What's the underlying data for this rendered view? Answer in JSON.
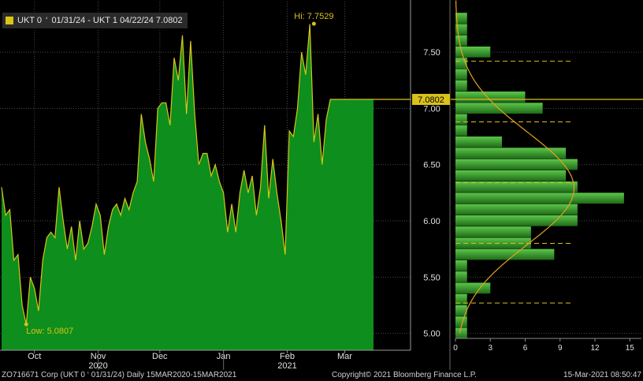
{
  "legend": {
    "series_label": "UKT 0",
    "link_glyph": "‘",
    "text": "01/31/24 - UKT 1 04/22/24 7.0802"
  },
  "colors": {
    "fill": "#0e8e1c",
    "line": "#d7c51a",
    "grid": "#4a4a4a",
    "axis_text": "#e0e0e0",
    "annotation": "#d9c21a",
    "hist_top": "#5cc74a",
    "hist_bottom": "#1f6a18",
    "pdf": "#e8a21a"
  },
  "chart_data": [
    {
      "type": "area",
      "series": [
        {
          "name": "UKT 0 01/31/24 - UKT 1 04/22/24",
          "x": [
            "2020-09-15",
            "2020-09-17",
            "2020-09-19",
            "2020-09-21",
            "2020-09-23",
            "2020-09-25",
            "2020-09-27",
            "2020-09-29",
            "2020-10-01",
            "2020-10-03",
            "2020-10-05",
            "2020-10-07",
            "2020-10-09",
            "2020-10-11",
            "2020-10-13",
            "2020-10-15",
            "2020-10-17",
            "2020-10-19",
            "2020-10-21",
            "2020-10-23",
            "2020-10-25",
            "2020-10-27",
            "2020-10-29",
            "2020-10-31",
            "2020-11-02",
            "2020-11-04",
            "2020-11-06",
            "2020-11-08",
            "2020-11-10",
            "2020-11-12",
            "2020-11-14",
            "2020-11-16",
            "2020-11-18",
            "2020-11-20",
            "2020-11-22",
            "2020-11-24",
            "2020-11-26",
            "2020-11-28",
            "2020-11-30",
            "2020-12-02",
            "2020-12-04",
            "2020-12-06",
            "2020-12-08",
            "2020-12-10",
            "2020-12-12",
            "2020-12-14",
            "2020-12-16",
            "2020-12-18",
            "2020-12-20",
            "2020-12-22",
            "2020-12-24",
            "2020-12-26",
            "2020-12-28",
            "2020-12-30",
            "2021-01-01",
            "2021-01-03",
            "2021-01-05",
            "2021-01-07",
            "2021-01-09",
            "2021-01-11",
            "2021-01-13",
            "2021-01-15",
            "2021-01-17",
            "2021-01-19",
            "2021-01-21",
            "2021-01-23",
            "2021-01-25",
            "2021-01-27",
            "2021-01-29",
            "2021-01-31",
            "2021-02-02",
            "2021-02-04",
            "2021-02-06",
            "2021-02-08",
            "2021-02-10",
            "2021-02-12",
            "2021-02-14",
            "2021-02-16",
            "2021-02-18",
            "2021-02-20",
            "2021-02-22",
            "2021-02-24",
            "2021-02-26",
            "2021-02-28",
            "2021-03-02",
            "2021-03-04",
            "2021-03-06",
            "2021-03-08",
            "2021-03-10",
            "2021-03-12",
            "2021-03-15"
          ],
          "y": [
            6.3,
            6.05,
            6.1,
            5.65,
            5.7,
            5.25,
            5.08,
            5.5,
            5.4,
            5.2,
            5.65,
            5.85,
            5.9,
            5.85,
            6.3,
            6.0,
            5.75,
            5.95,
            5.65,
            6.0,
            5.75,
            5.8,
            5.95,
            6.15,
            6.05,
            5.7,
            5.95,
            6.1,
            6.15,
            6.05,
            6.2,
            6.1,
            6.25,
            6.35,
            6.95,
            6.7,
            6.55,
            6.35,
            7.0,
            7.05,
            7.05,
            6.85,
            7.45,
            7.25,
            7.65,
            6.95,
            7.6,
            6.95,
            6.5,
            6.6,
            6.6,
            6.4,
            6.5,
            6.35,
            6.25,
            5.9,
            6.15,
            5.9,
            6.25,
            6.45,
            6.25,
            6.4,
            6.05,
            6.3,
            6.85,
            6.2,
            6.55,
            6.25,
            6.0,
            5.7,
            6.8,
            6.75,
            7.0,
            7.5,
            7.3,
            7.75,
            6.7,
            6.95,
            6.5,
            6.9,
            7.08,
            7.08,
            7.08,
            7.08,
            7.08,
            7.08,
            7.08,
            7.08,
            7.08,
            7.08,
            7.0802
          ]
        }
      ],
      "xlabels": [
        {
          "date": "2020-10-01",
          "label": "Oct"
        },
        {
          "date": "2020-11-01",
          "label": "Nov",
          "year": "2020"
        },
        {
          "date": "2020-12-01",
          "label": "Dec"
        },
        {
          "date": "2021-01-01",
          "label": "Jan"
        },
        {
          "date": "2021-02-01",
          "label": "Feb",
          "year": "2021"
        },
        {
          "date": "2021-03-01",
          "label": "Mar"
        }
      ],
      "ylim": [
        4.85,
        7.95
      ],
      "yticks": [
        "5.00",
        "5.50",
        "6.00",
        "6.50",
        "7.00",
        "7.50"
      ],
      "grid": true,
      "hi_label": "Hi: 7.7529",
      "hi_value": 7.7529,
      "hi_date": "2021-02-14",
      "low_label": "Low: 5.0807",
      "low_value": 5.0807,
      "low_date": "2020-09-27",
      "last_label": "7.0802",
      "last_value": 7.0802
    },
    {
      "type": "bar",
      "orientation": "horizontal",
      "bins": [
        5.0,
        5.1,
        5.2,
        5.3,
        5.4,
        5.5,
        5.6,
        5.7,
        5.8,
        5.9,
        6.0,
        6.1,
        6.2,
        6.3,
        6.4,
        6.5,
        6.6,
        6.7,
        6.8,
        6.9,
        7.0,
        7.1,
        7.2,
        7.3,
        7.4,
        7.5,
        7.6,
        7.7,
        7.8
      ],
      "counts": [
        1,
        1,
        1,
        1,
        3,
        1,
        1,
        8.5,
        6.5,
        6.5,
        10.5,
        10.5,
        14.5,
        10.5,
        9.5,
        10.5,
        9.5,
        4,
        1,
        1,
        7.5,
        6,
        1,
        1,
        1,
        3,
        1,
        1,
        1
      ],
      "xticks": [
        "0",
        "3",
        "6",
        "9",
        "12",
        "15"
      ],
      "xlim": [
        0,
        16
      ],
      "pdf_mean": 6.29,
      "pdf_sd": 0.5,
      "pdf_peak": 10.2,
      "dashed_levels": [
        5.27,
        5.8,
        6.34,
        6.88,
        7.42
      ],
      "grid": true
    }
  ],
  "footer": {
    "left": "ZO716671 Corp (UKT 0 ‘ 01/31/24)  Daily 15MAR2020-15MAR2021",
    "center": "Copyright© 2021 Bloomberg Finance L.P.",
    "right": "15-Mar-2021 08:50:47"
  }
}
